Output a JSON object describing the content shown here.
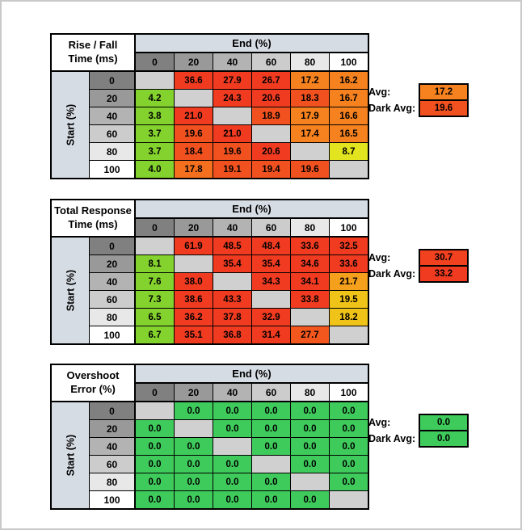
{
  "shared": {
    "end_header": "End (%)",
    "start_label": "Start (%)",
    "col_headers": [
      "0",
      "20",
      "40",
      "60",
      "80",
      "100"
    ],
    "row_headers": [
      "0",
      "20",
      "40",
      "60",
      "80",
      "100"
    ],
    "header_colors": [
      "#808080",
      "#999999",
      "#B3B3B3",
      "#CCCCCC",
      "#E8E8E8",
      "#FFFFFF"
    ],
    "diagonal_color": "#D0D0D0",
    "band_color": "#D6DCE4"
  },
  "tables": [
    {
      "id": "rise-fall-time",
      "title": [
        "Rise / Fall",
        "Time (ms)"
      ],
      "cells": [
        [
          null,
          "36.6",
          "27.9",
          "26.7",
          "17.2",
          "16.2"
        ],
        [
          "4.2",
          null,
          "24.3",
          "20.6",
          "18.3",
          "16.7"
        ],
        [
          "3.8",
          "21.0",
          null,
          "18.9",
          "17.9",
          "16.6"
        ],
        [
          "3.7",
          "19.6",
          "21.0",
          null,
          "17.4",
          "16.5"
        ],
        [
          "3.7",
          "18.4",
          "19.6",
          "20.6",
          null,
          "8.7"
        ],
        [
          "4.0",
          "17.8",
          "19.1",
          "19.4",
          "19.6",
          null
        ]
      ],
      "colors": [
        [
          null,
          "#F13B21",
          "#F13B21",
          "#F13B21",
          "#F5811F",
          "#F5811F"
        ],
        [
          "#84D22D",
          null,
          "#F13B21",
          "#F13B21",
          "#F1511F",
          "#F5811F"
        ],
        [
          "#84D22D",
          "#F13B21",
          null,
          "#F1511F",
          "#F5811F",
          "#F5811F"
        ],
        [
          "#84D22D",
          "#F1511F",
          "#F13B21",
          null,
          "#F5811F",
          "#F5811F"
        ],
        [
          "#84D22D",
          "#F1511F",
          "#F1511F",
          "#F13B21",
          null,
          "#E2E41F"
        ],
        [
          "#84D22D",
          "#F4701E",
          "#F1511F",
          "#F1511F",
          "#F1511F",
          null
        ]
      ],
      "avg": {
        "label": "Avg:",
        "value": "17.2",
        "color": "#F5811F"
      },
      "dark_avg": {
        "label": "Dark Avg:",
        "value": "19.6",
        "color": "#F1511F"
      }
    },
    {
      "id": "total-response-time",
      "title": [
        "Total Response",
        "Time (ms)"
      ],
      "cells": [
        [
          null,
          "61.9",
          "48.5",
          "48.4",
          "33.6",
          "32.5"
        ],
        [
          "8.1",
          null,
          "35.4",
          "35.4",
          "34.6",
          "33.6"
        ],
        [
          "7.6",
          "38.0",
          null,
          "34.3",
          "34.1",
          "21.7"
        ],
        [
          "7.3",
          "38.6",
          "43.3",
          null,
          "33.8",
          "19.5"
        ],
        [
          "6.5",
          "36.2",
          "37.8",
          "32.9",
          null,
          "18.2"
        ],
        [
          "6.7",
          "35.1",
          "36.8",
          "31.4",
          "27.7",
          null
        ]
      ],
      "colors": [
        [
          null,
          "#F13B21",
          "#F13B21",
          "#F13B21",
          "#F13B21",
          "#F13B21"
        ],
        [
          "#84D22D",
          null,
          "#F13B21",
          "#F13B21",
          "#F13B21",
          "#F13B21"
        ],
        [
          "#84D22D",
          "#F13B21",
          null,
          "#F13B21",
          "#F13B21",
          "#F5A01D"
        ],
        [
          "#84D22D",
          "#F13B21",
          "#F13B21",
          null,
          "#F13B21",
          "#F0C318"
        ],
        [
          "#84D22D",
          "#F13B21",
          "#F13B21",
          "#F13B21",
          null,
          "#F0C318"
        ],
        [
          "#84D22D",
          "#F13B21",
          "#F13B21",
          "#F13B21",
          "#F4571E",
          null
        ]
      ],
      "avg": {
        "label": "Avg:",
        "value": "30.7",
        "color": "#F2411F"
      },
      "dark_avg": {
        "label": "Dark Avg:",
        "value": "33.2",
        "color": "#F13B21"
      }
    },
    {
      "id": "overshoot-error",
      "title": [
        "Overshoot",
        "Error (%)"
      ],
      "cells": [
        [
          null,
          "0.0",
          "0.0",
          "0.0",
          "0.0",
          "0.0"
        ],
        [
          "0.0",
          null,
          "0.0",
          "0.0",
          "0.0",
          "0.0"
        ],
        [
          "0.0",
          "0.0",
          null,
          "0.0",
          "0.0",
          "0.0"
        ],
        [
          "0.0",
          "0.0",
          "0.0",
          null,
          "0.0",
          "0.0"
        ],
        [
          "0.0",
          "0.0",
          "0.0",
          "0.0",
          null,
          "0.0"
        ],
        [
          "0.0",
          "0.0",
          "0.0",
          "0.0",
          "0.0",
          null
        ]
      ],
      "colors": [
        [
          null,
          "#3FCB5C",
          "#3FCB5C",
          "#3FCB5C",
          "#3FCB5C",
          "#3FCB5C"
        ],
        [
          "#3FCB5C",
          null,
          "#3FCB5C",
          "#3FCB5C",
          "#3FCB5C",
          "#3FCB5C"
        ],
        [
          "#3FCB5C",
          "#3FCB5C",
          null,
          "#3FCB5C",
          "#3FCB5C",
          "#3FCB5C"
        ],
        [
          "#3FCB5C",
          "#3FCB5C",
          "#3FCB5C",
          null,
          "#3FCB5C",
          "#3FCB5C"
        ],
        [
          "#3FCB5C",
          "#3FCB5C",
          "#3FCB5C",
          "#3FCB5C",
          null,
          "#3FCB5C"
        ],
        [
          "#3FCB5C",
          "#3FCB5C",
          "#3FCB5C",
          "#3FCB5C",
          "#3FCB5C",
          null
        ]
      ],
      "avg": {
        "label": "Avg:",
        "value": "0.0",
        "color": "#3FCB5C"
      },
      "dark_avg": {
        "label": "Dark Avg:",
        "value": "0.0",
        "color": "#3FCB5C"
      }
    }
  ]
}
